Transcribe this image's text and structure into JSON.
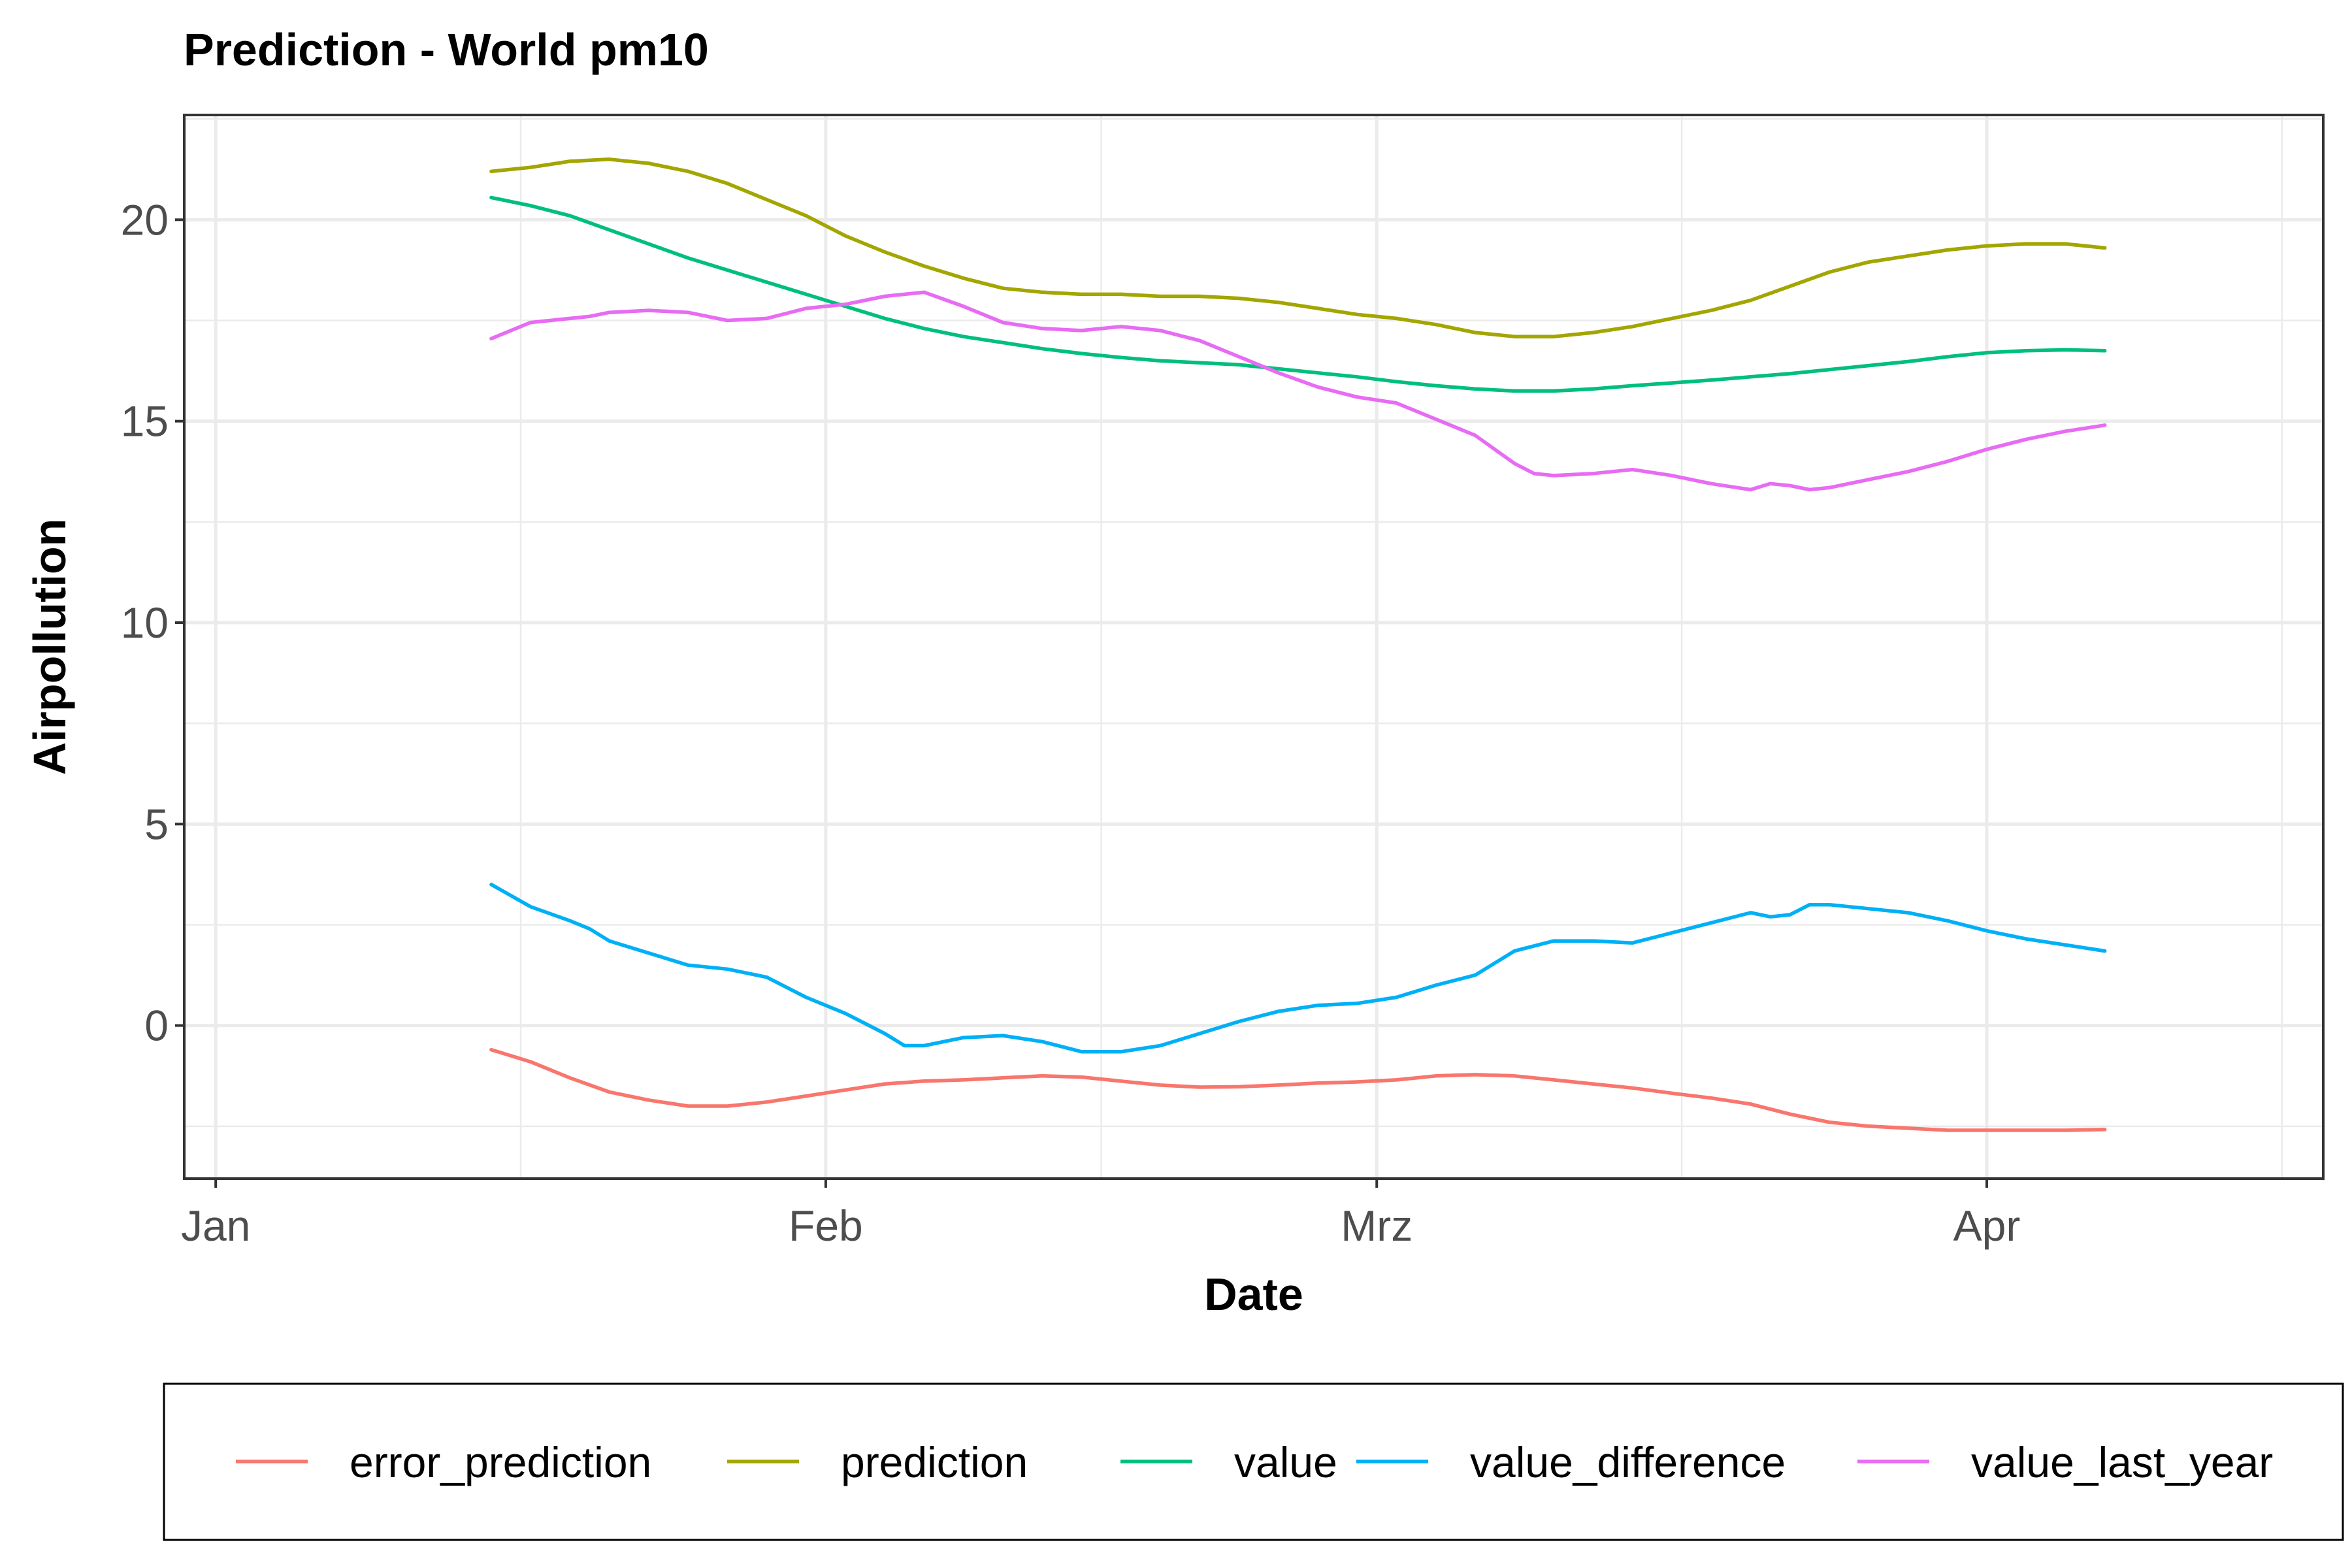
{
  "chart_data": {
    "type": "line",
    "title": "Prediction - World pm10",
    "xlabel": "Date",
    "ylabel": "Airpollution",
    "x_ticks": [
      "Jan",
      "Feb",
      "Mrz",
      "Apr"
    ],
    "y_ticks": [
      "0",
      "5",
      "10",
      "15",
      "20"
    ],
    "y_tick_values": [
      0,
      5,
      10,
      15,
      20
    ],
    "ylim": [
      -3.8,
      22.6
    ],
    "xlim_days": [
      -1.6,
      107.1
    ],
    "x_tick_days": [
      0,
      31,
      59,
      90
    ],
    "x_minor_days": [
      15.5,
      45,
      74.5,
      105
    ],
    "grid": true,
    "legend_position": "bottom",
    "series": [
      {
        "name": "error_prediction",
        "color": "#F8766D",
        "points": [
          [
            14,
            -0.6
          ],
          [
            16,
            -0.9
          ],
          [
            18,
            -1.3
          ],
          [
            20,
            -1.65
          ],
          [
            22,
            -1.85
          ],
          [
            24,
            -2.0
          ],
          [
            26,
            -2.0
          ],
          [
            28,
            -1.9
          ],
          [
            30,
            -1.75
          ],
          [
            32,
            -1.6
          ],
          [
            34,
            -1.45
          ],
          [
            36,
            -1.38
          ],
          [
            38,
            -1.35
          ],
          [
            40,
            -1.3
          ],
          [
            42,
            -1.25
          ],
          [
            44,
            -1.28
          ],
          [
            46,
            -1.38
          ],
          [
            48,
            -1.48
          ],
          [
            50,
            -1.53
          ],
          [
            52,
            -1.52
          ],
          [
            54,
            -1.48
          ],
          [
            56,
            -1.43
          ],
          [
            58,
            -1.4
          ],
          [
            60,
            -1.35
          ],
          [
            62,
            -1.25
          ],
          [
            64,
            -1.22
          ],
          [
            66,
            -1.25
          ],
          [
            68,
            -1.35
          ],
          [
            70,
            -1.45
          ],
          [
            72,
            -1.55
          ],
          [
            74,
            -1.68
          ],
          [
            76,
            -1.8
          ],
          [
            78,
            -1.95
          ],
          [
            80,
            -2.2
          ],
          [
            82,
            -2.4
          ],
          [
            84,
            -2.5
          ],
          [
            86,
            -2.55
          ],
          [
            88,
            -2.6
          ],
          [
            90,
            -2.6
          ],
          [
            92,
            -2.6
          ],
          [
            94,
            -2.6
          ],
          [
            96,
            -2.58
          ]
        ]
      },
      {
        "name": "prediction",
        "color": "#A3A500",
        "points": [
          [
            14,
            21.2
          ],
          [
            16,
            21.3
          ],
          [
            18,
            21.45
          ],
          [
            20,
            21.5
          ],
          [
            22,
            21.4
          ],
          [
            24,
            21.2
          ],
          [
            26,
            20.9
          ],
          [
            28,
            20.5
          ],
          [
            30,
            20.1
          ],
          [
            32,
            19.6
          ],
          [
            34,
            19.2
          ],
          [
            36,
            18.85
          ],
          [
            38,
            18.55
          ],
          [
            40,
            18.3
          ],
          [
            42,
            18.2
          ],
          [
            44,
            18.15
          ],
          [
            46,
            18.15
          ],
          [
            48,
            18.1
          ],
          [
            50,
            18.1
          ],
          [
            52,
            18.05
          ],
          [
            54,
            17.95
          ],
          [
            56,
            17.8
          ],
          [
            58,
            17.65
          ],
          [
            60,
            17.55
          ],
          [
            62,
            17.4
          ],
          [
            64,
            17.2
          ],
          [
            66,
            17.1
          ],
          [
            68,
            17.1
          ],
          [
            70,
            17.2
          ],
          [
            72,
            17.35
          ],
          [
            74,
            17.55
          ],
          [
            76,
            17.75
          ],
          [
            78,
            18.0
          ],
          [
            80,
            18.35
          ],
          [
            82,
            18.7
          ],
          [
            84,
            18.95
          ],
          [
            86,
            19.1
          ],
          [
            88,
            19.25
          ],
          [
            90,
            19.35
          ],
          [
            92,
            19.4
          ],
          [
            94,
            19.4
          ],
          [
            96,
            19.3
          ]
        ]
      },
      {
        "name": "value",
        "color": "#00BF7D",
        "points": [
          [
            14,
            20.55
          ],
          [
            16,
            20.35
          ],
          [
            18,
            20.1
          ],
          [
            20,
            19.75
          ],
          [
            22,
            19.4
          ],
          [
            24,
            19.05
          ],
          [
            26,
            18.75
          ],
          [
            28,
            18.45
          ],
          [
            30,
            18.15
          ],
          [
            32,
            17.85
          ],
          [
            34,
            17.55
          ],
          [
            36,
            17.3
          ],
          [
            38,
            17.1
          ],
          [
            40,
            16.95
          ],
          [
            42,
            16.8
          ],
          [
            44,
            16.68
          ],
          [
            46,
            16.58
          ],
          [
            48,
            16.5
          ],
          [
            50,
            16.45
          ],
          [
            52,
            16.4
          ],
          [
            54,
            16.3
          ],
          [
            56,
            16.2
          ],
          [
            58,
            16.1
          ],
          [
            60,
            15.98
          ],
          [
            62,
            15.88
          ],
          [
            64,
            15.8
          ],
          [
            66,
            15.75
          ],
          [
            68,
            15.75
          ],
          [
            70,
            15.8
          ],
          [
            72,
            15.88
          ],
          [
            74,
            15.95
          ],
          [
            76,
            16.02
          ],
          [
            78,
            16.1
          ],
          [
            80,
            16.18
          ],
          [
            82,
            16.28
          ],
          [
            84,
            16.38
          ],
          [
            86,
            16.48
          ],
          [
            88,
            16.6
          ],
          [
            90,
            16.7
          ],
          [
            92,
            16.75
          ],
          [
            94,
            16.77
          ],
          [
            96,
            16.75
          ]
        ]
      },
      {
        "name": "value_difference",
        "color": "#00B0F6",
        "points": [
          [
            14,
            3.5
          ],
          [
            16,
            2.95
          ],
          [
            18,
            2.6
          ],
          [
            19,
            2.4
          ],
          [
            20,
            2.1
          ],
          [
            22,
            1.8
          ],
          [
            24,
            1.5
          ],
          [
            26,
            1.4
          ],
          [
            28,
            1.2
          ],
          [
            30,
            0.7
          ],
          [
            32,
            0.3
          ],
          [
            34,
            -0.2
          ],
          [
            35,
            -0.5
          ],
          [
            36,
            -0.5
          ],
          [
            38,
            -0.3
          ],
          [
            40,
            -0.25
          ],
          [
            42,
            -0.4
          ],
          [
            44,
            -0.65
          ],
          [
            46,
            -0.65
          ],
          [
            48,
            -0.5
          ],
          [
            50,
            -0.2
          ],
          [
            52,
            0.1
          ],
          [
            54,
            0.35
          ],
          [
            56,
            0.5
          ],
          [
            58,
            0.55
          ],
          [
            60,
            0.7
          ],
          [
            62,
            1.0
          ],
          [
            64,
            1.25
          ],
          [
            66,
            1.85
          ],
          [
            68,
            2.1
          ],
          [
            70,
            2.1
          ],
          [
            72,
            2.05
          ],
          [
            74,
            2.3
          ],
          [
            76,
            2.55
          ],
          [
            78,
            2.8
          ],
          [
            79,
            2.7
          ],
          [
            80,
            2.75
          ],
          [
            81,
            3.0
          ],
          [
            82,
            3.0
          ],
          [
            84,
            2.9
          ],
          [
            86,
            2.8
          ],
          [
            88,
            2.6
          ],
          [
            90,
            2.35
          ],
          [
            92,
            2.15
          ],
          [
            94,
            2.0
          ],
          [
            96,
            1.85
          ]
        ]
      },
      {
        "name": "value_last_year",
        "color": "#E76BF3",
        "points": [
          [
            14,
            17.05
          ],
          [
            16,
            17.45
          ],
          [
            18,
            17.55
          ],
          [
            19,
            17.6
          ],
          [
            20,
            17.7
          ],
          [
            22,
            17.75
          ],
          [
            24,
            17.7
          ],
          [
            26,
            17.5
          ],
          [
            28,
            17.55
          ],
          [
            30,
            17.8
          ],
          [
            32,
            17.9
          ],
          [
            34,
            18.1
          ],
          [
            36,
            18.2
          ],
          [
            38,
            17.85
          ],
          [
            40,
            17.45
          ],
          [
            42,
            17.3
          ],
          [
            44,
            17.25
          ],
          [
            46,
            17.35
          ],
          [
            48,
            17.25
          ],
          [
            50,
            17.0
          ],
          [
            52,
            16.6
          ],
          [
            54,
            16.2
          ],
          [
            56,
            15.85
          ],
          [
            58,
            15.6
          ],
          [
            60,
            15.45
          ],
          [
            62,
            15.05
          ],
          [
            64,
            14.65
          ],
          [
            66,
            13.95
          ],
          [
            67,
            13.7
          ],
          [
            68,
            13.65
          ],
          [
            70,
            13.7
          ],
          [
            72,
            13.8
          ],
          [
            74,
            13.65
          ],
          [
            76,
            13.45
          ],
          [
            78,
            13.3
          ],
          [
            79,
            13.45
          ],
          [
            80,
            13.4
          ],
          [
            81,
            13.3
          ],
          [
            82,
            13.35
          ],
          [
            84,
            13.55
          ],
          [
            86,
            13.75
          ],
          [
            88,
            14.0
          ],
          [
            90,
            14.3
          ],
          [
            92,
            14.55
          ],
          [
            94,
            14.75
          ],
          [
            96,
            14.9
          ]
        ]
      }
    ]
  }
}
